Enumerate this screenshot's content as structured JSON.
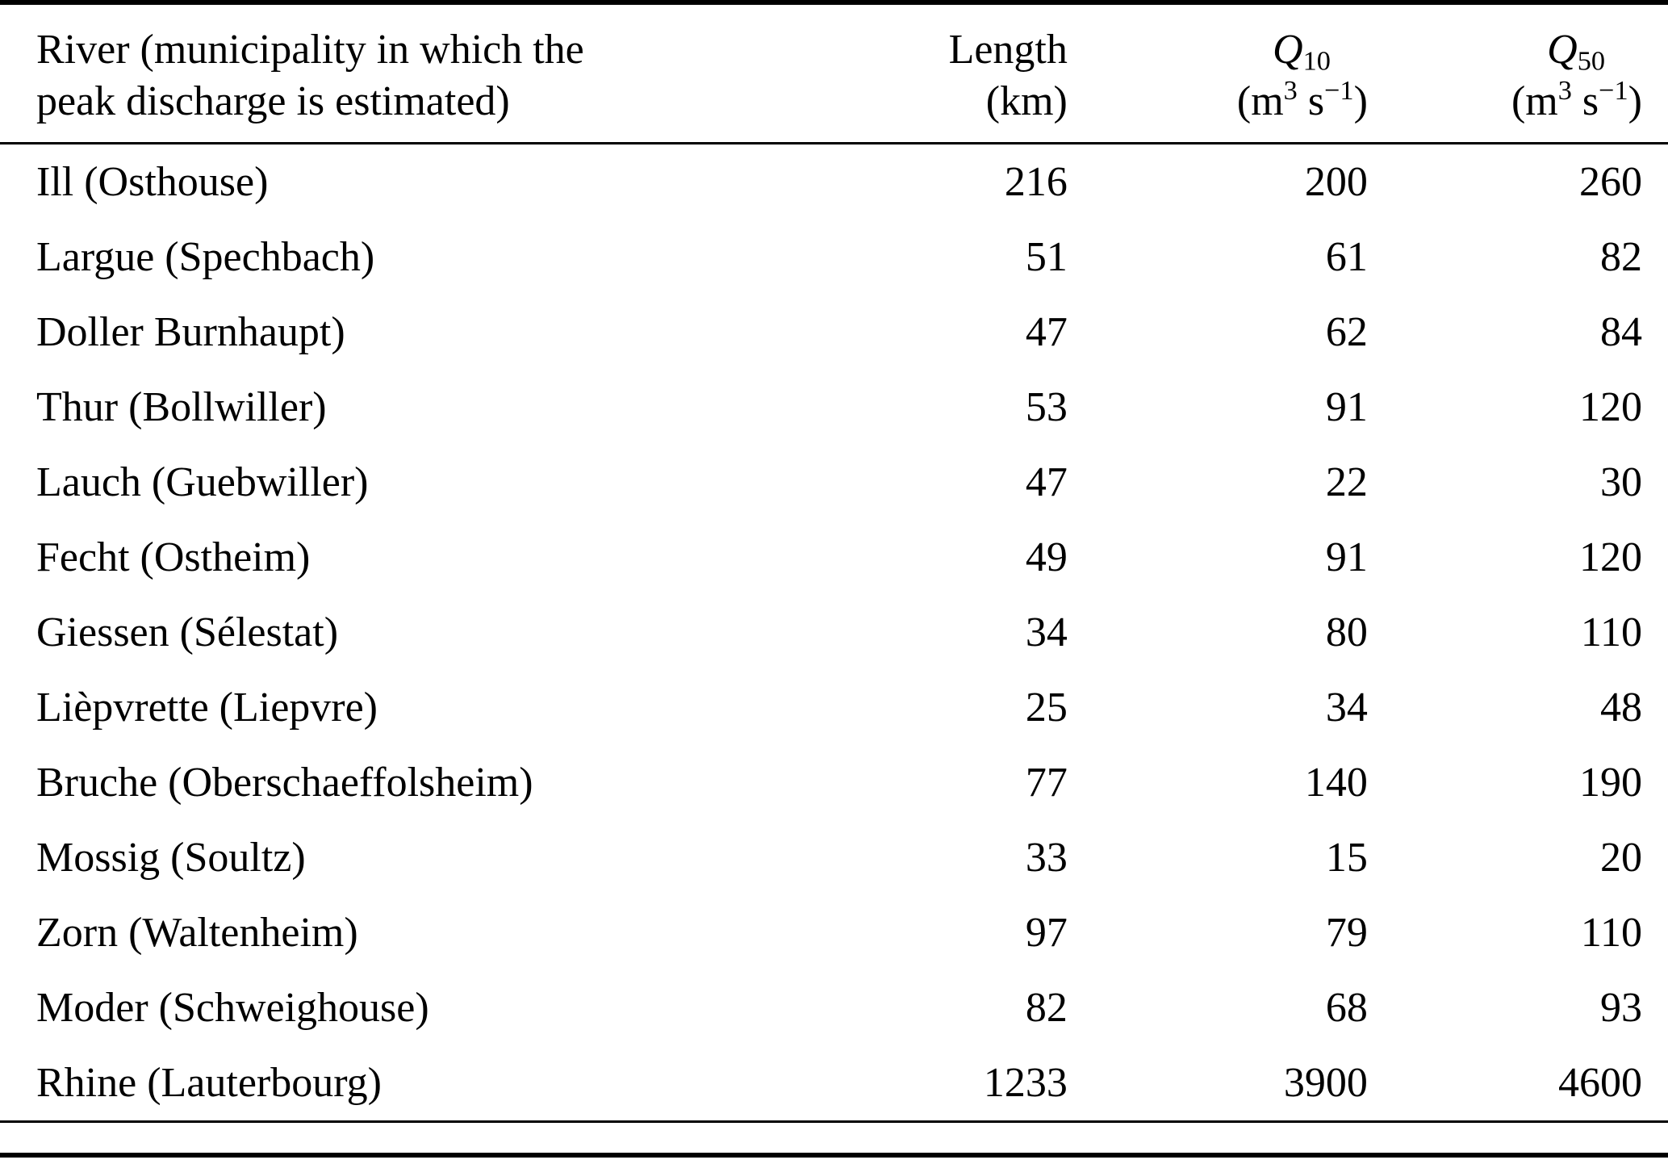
{
  "table": {
    "header": {
      "river_line1": "River (municipality in which the",
      "river_line2": "peak discharge is estimated)",
      "length_label": "Length",
      "length_unit": "(km)",
      "q10": {
        "symbol": "Q",
        "sub": "10"
      },
      "q50": {
        "symbol": "Q",
        "sub": "50"
      },
      "units": {
        "open": "(m",
        "sup3": "3",
        "s": " s",
        "supm1": "−1",
        "close": ")"
      }
    },
    "rows": [
      {
        "river": "Ill (Osthouse)",
        "length": "216",
        "q10": "200",
        "q50": "260"
      },
      {
        "river": "Largue (Spechbach)",
        "length": "51",
        "q10": "61",
        "q50": "82"
      },
      {
        "river": "Doller Burnhaupt)",
        "length": "47",
        "q10": "62",
        "q50": "84"
      },
      {
        "river": "Thur (Bollwiller)",
        "length": "53",
        "q10": "91",
        "q50": "120"
      },
      {
        "river": "Lauch (Guebwiller)",
        "length": "47",
        "q10": "22",
        "q50": "30"
      },
      {
        "river": "Fecht (Ostheim)",
        "length": "49",
        "q10": "91",
        "q50": "120"
      },
      {
        "river": "Giessen (Sélestat)",
        "length": "34",
        "q10": "80",
        "q50": "110"
      },
      {
        "river": "Lièpvrette (Liepvre)",
        "length": "25",
        "q10": "34",
        "q50": "48"
      },
      {
        "river": "Bruche (Oberschaeffolsheim)",
        "length": "77",
        "q10": "140",
        "q50": "190"
      },
      {
        "river": "Mossig (Soultz)",
        "length": "33",
        "q10": "15",
        "q50": "20"
      },
      {
        "river": "Zorn (Waltenheim)",
        "length": "97",
        "q10": "79",
        "q50": "110"
      },
      {
        "river": "Moder (Schweighouse)",
        "length": "82",
        "q10": "68",
        "q50": "93"
      },
      {
        "river": "Rhine (Lauterbourg)",
        "length": "1233",
        "q10": "3900",
        "q50": "4600"
      }
    ],
    "colors": {
      "text": "#000000",
      "background": "#ffffff",
      "rule": "#000000"
    }
  }
}
